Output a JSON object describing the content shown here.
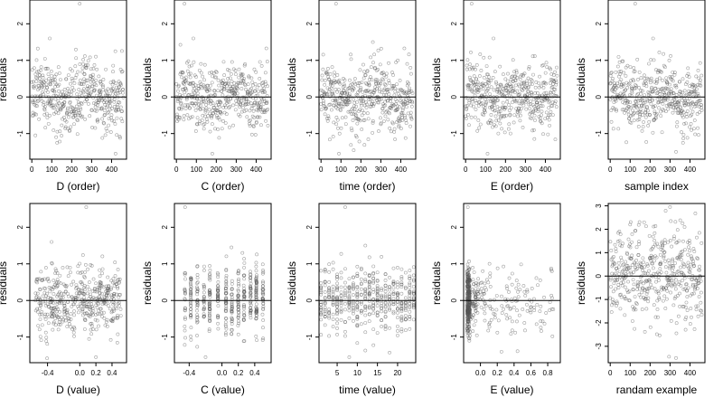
{
  "chart_data": [
    {
      "type": "scatter",
      "xlabel": "D (order)",
      "ylabel": "residuals",
      "x_ticks": [
        0,
        100,
        200,
        300,
        400
      ],
      "y_ticks": [
        -1,
        0,
        1,
        2
      ],
      "xlim": [
        -10,
        475
      ],
      "ylim": [
        -1.7,
        2.65
      ],
      "hline": 0,
      "n_points": 460,
      "x_distribution": "index",
      "residual_sd": 0.45,
      "extremes": [
        {
          "x": 240,
          "y": 2.55
        },
        {
          "x": 420,
          "y": -1.55
        },
        {
          "x": 90,
          "y": 1.6
        }
      ]
    },
    {
      "type": "scatter",
      "xlabel": "C (order)",
      "ylabel": "residuals",
      "x_ticks": [
        0,
        100,
        200,
        300,
        400
      ],
      "y_ticks": [
        -1,
        0,
        1,
        2
      ],
      "xlim": [
        -10,
        475
      ],
      "ylim": [
        -1.7,
        2.65
      ],
      "hline": 0,
      "n_points": 460,
      "x_distribution": "index",
      "residual_sd": 0.45,
      "extremes": [
        {
          "x": 40,
          "y": 2.55
        },
        {
          "x": 180,
          "y": -1.55
        },
        {
          "x": 85,
          "y": 1.6
        }
      ]
    },
    {
      "type": "scatter",
      "xlabel": "time (order)",
      "ylabel": "residuals",
      "x_ticks": [
        0,
        100,
        200,
        300,
        400
      ],
      "y_ticks": [
        -1,
        0,
        1,
        2
      ],
      "xlim": [
        -10,
        475
      ],
      "ylim": [
        -1.7,
        2.65
      ],
      "hline": 0,
      "n_points": 460,
      "x_distribution": "index",
      "residual_sd": 0.45,
      "extremes": [
        {
          "x": 75,
          "y": 2.55
        },
        {
          "x": 90,
          "y": -1.55
        },
        {
          "x": 260,
          "y": 1.5
        }
      ]
    },
    {
      "type": "scatter",
      "xlabel": "E (order)",
      "ylabel": "residuals",
      "x_ticks": [
        0,
        100,
        200,
        300,
        400
      ],
      "y_ticks": [
        -1,
        0,
        1,
        2
      ],
      "xlim": [
        -10,
        475
      ],
      "ylim": [
        -1.7,
        2.65
      ],
      "hline": 0,
      "n_points": 460,
      "x_distribution": "index",
      "residual_sd": 0.45,
      "extremes": [
        {
          "x": 30,
          "y": 2.55
        },
        {
          "x": 110,
          "y": -1.55
        },
        {
          "x": 140,
          "y": 1.6
        }
      ]
    },
    {
      "type": "scatter",
      "xlabel": "sample index",
      "ylabel": "residuals",
      "x_ticks": [
        0,
        100,
        200,
        300,
        400
      ],
      "y_ticks": [
        -1,
        0,
        1,
        2
      ],
      "xlim": [
        -10,
        475
      ],
      "ylim": [
        -1.7,
        2.65
      ],
      "hline": 0,
      "n_points": 460,
      "x_distribution": "index",
      "residual_sd": 0.45,
      "extremes": [
        {
          "x": 125,
          "y": 2.55
        },
        {
          "x": 330,
          "y": -1.5
        },
        {
          "x": 215,
          "y": 1.6
        }
      ]
    },
    {
      "type": "scatter",
      "xlabel": "D (value)",
      "ylabel": "residuals",
      "x_ticks": [
        -0.4,
        0.0,
        0.2,
        0.4
      ],
      "x_tick_labels": [
        "-0.4",
        "0.0",
        "0.2",
        "0.4"
      ],
      "y_ticks": [
        -1,
        0,
        1,
        2
      ],
      "xlim": [
        -0.62,
        0.58
      ],
      "ylim": [
        -1.7,
        2.65
      ],
      "hline": 0,
      "n_points": 460,
      "x_distribution": "uniform",
      "residual_sd": 0.45,
      "extremes": [
        {
          "x": 0.08,
          "y": 2.55
        },
        {
          "x": 0.2,
          "y": -1.55
        },
        {
          "x": -0.35,
          "y": 1.6
        }
      ]
    },
    {
      "type": "scatter",
      "xlabel": "C (value)",
      "ylabel": "residuals",
      "x_ticks": [
        -0.4,
        0.0,
        0.2,
        0.4
      ],
      "x_tick_labels": [
        "-0.4",
        "0.0",
        "0.2",
        "0.4"
      ],
      "y_ticks": [
        -1,
        0,
        1,
        2
      ],
      "xlim": [
        -0.58,
        0.6
      ],
      "ylim": [
        -1.7,
        2.65
      ],
      "hline": 0,
      "n_points": 460,
      "x_distribution": "discrete",
      "x_levels": [
        -0.45,
        -0.38,
        -0.3,
        -0.22,
        -0.15,
        -0.05,
        0.05,
        0.12,
        0.2,
        0.27,
        0.35,
        0.42,
        0.5
      ],
      "residual_sd": 0.45,
      "extremes": [
        {
          "x": -0.45,
          "y": 2.55
        },
        {
          "x": -0.2,
          "y": -1.55
        },
        {
          "x": 0.25,
          "y": 1.3
        }
      ]
    },
    {
      "type": "scatter",
      "xlabel": "time (value)",
      "ylabel": "residuals",
      "x_ticks": [
        5,
        10,
        15,
        20
      ],
      "y_ticks": [
        -1,
        0,
        1,
        2
      ],
      "xlim": [
        0.5,
        24.5
      ],
      "ylim": [
        -1.7,
        2.65
      ],
      "hline": 0,
      "n_points": 460,
      "x_distribution": "discrete",
      "x_levels": [
        1,
        2,
        3,
        4,
        5,
        6,
        7,
        8,
        9,
        10,
        11,
        12,
        13,
        14,
        15,
        16,
        17,
        18,
        19,
        20,
        21,
        22,
        23,
        24
      ],
      "residual_sd": 0.45,
      "extremes": [
        {
          "x": 7,
          "y": 2.55
        },
        {
          "x": 8,
          "y": -1.55
        },
        {
          "x": 12,
          "y": 1.5
        }
      ]
    },
    {
      "type": "scatter",
      "xlabel": "E (value)",
      "ylabel": "residuals",
      "x_ticks": [
        0.0,
        0.2,
        0.4,
        0.6,
        0.8
      ],
      "x_tick_labels": [
        "0.0",
        "0.2",
        "0.4",
        "0.6",
        "0.8"
      ],
      "y_ticks": [
        -1,
        0,
        1,
        2
      ],
      "xlim": [
        -0.2,
        0.95
      ],
      "ylim": [
        -1.7,
        2.65
      ],
      "hline": 0,
      "n_points": 460,
      "x_distribution": "skewed",
      "residual_sd": 0.45,
      "extremes": [
        {
          "x": -0.15,
          "y": 2.55
        },
        {
          "x": 0.25,
          "y": -1.4
        },
        {
          "x": 0.85,
          "y": 0.8
        }
      ]
    },
    {
      "type": "scatter",
      "xlabel": "randam example",
      "ylabel": "residuals",
      "x_ticks": [
        0,
        100,
        200,
        300,
        400
      ],
      "y_ticks": [
        -3,
        -2,
        -1,
        0,
        1,
        2,
        3
      ],
      "xlim": [
        -10,
        475
      ],
      "ylim": [
        -3.7,
        3.1
      ],
      "hline": 0,
      "n_points": 460,
      "x_distribution": "index",
      "residual_sd": 1.0,
      "extremes": [
        {
          "x": 300,
          "y": 2.95
        },
        {
          "x": 330,
          "y": -3.5
        },
        {
          "x": 100,
          "y": 2.2
        }
      ]
    }
  ]
}
